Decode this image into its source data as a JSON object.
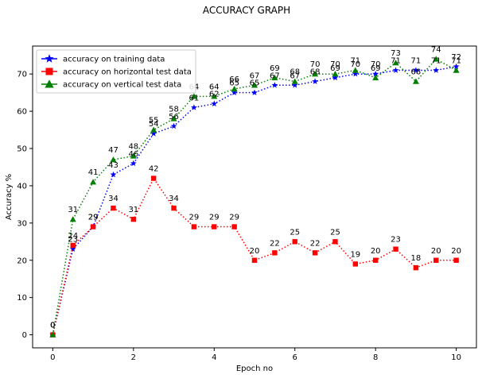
{
  "chart_data": {
    "type": "line",
    "title": "ACCURACY GRAPH",
    "xlabel": "Epoch no",
    "ylabel": "Accuracy %",
    "xlim": [
      -0.5,
      10.5
    ],
    "ylim": [
      -3.5,
      77.5
    ],
    "xticks": [
      0,
      2,
      4,
      6,
      8,
      10
    ],
    "yticks": [
      0,
      10,
      20,
      30,
      40,
      50,
      60,
      70
    ],
    "grid": false,
    "legend_position": "top-left",
    "x": [
      0,
      0.5,
      1,
      1.5,
      2,
      2.5,
      3,
      3.5,
      4,
      4.5,
      5,
      5.5,
      6,
      6.5,
      7,
      7.5,
      8,
      8.5,
      9,
      9.5,
      10
    ],
    "series": [
      {
        "name": "accuracy on training data",
        "color": "#0000ff",
        "marker": "star",
        "values": [
          0,
          23,
          29,
          43,
          46,
          54,
          56,
          61,
          62,
          65,
          65,
          67,
          67,
          68,
          69,
          70,
          70,
          71,
          71,
          71,
          72
        ]
      },
      {
        "name": "accuracy on horizontal test data",
        "color": "#ff0000",
        "marker": "square",
        "values": [
          0,
          24,
          29,
          34,
          31,
          42,
          34,
          29,
          29,
          29,
          20,
          22,
          25,
          22,
          25,
          19,
          20,
          23,
          18,
          20,
          20
        ]
      },
      {
        "name": "accuracy on vertical test data",
        "color": "#008000",
        "marker": "triangle",
        "values": [
          0,
          31,
          41,
          47,
          48,
          55,
          58,
          64,
          64,
          66,
          67,
          69,
          68,
          70,
          70,
          71,
          69,
          73,
          68,
          74,
          71
        ]
      }
    ]
  }
}
